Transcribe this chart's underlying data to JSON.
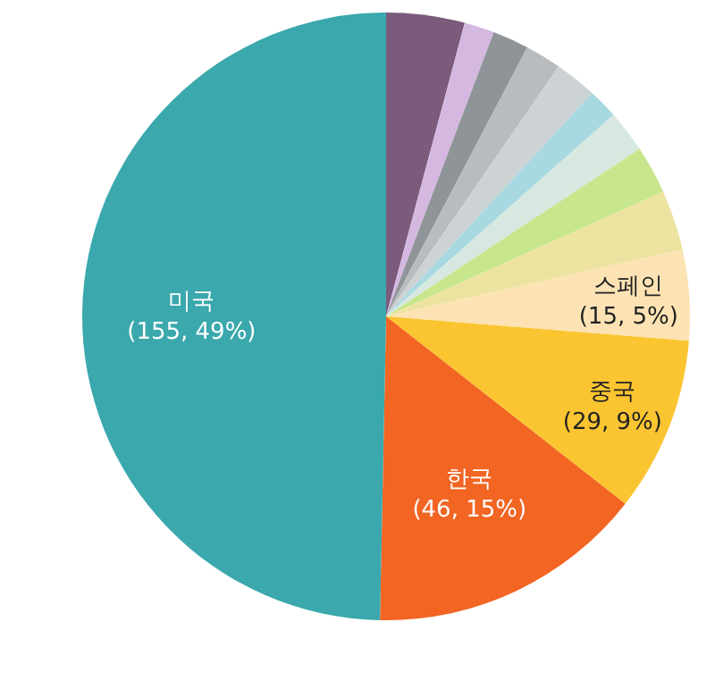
{
  "chart_data": {
    "type": "pie",
    "categories": [
      null,
      null,
      null,
      null,
      null,
      null,
      null,
      null,
      null,
      "스페인",
      "중국",
      "한국",
      "미국"
    ],
    "values": [
      13,
      5,
      6,
      6,
      7,
      5,
      7,
      8,
      10,
      15,
      29,
      46,
      155
    ],
    "value_labels": [
      null,
      null,
      null,
      null,
      null,
      null,
      null,
      null,
      null,
      "(15, 5%)",
      "(29, 9%)",
      "(46, 15%)",
      "(155, 49%)"
    ],
    "colors": [
      "#7b5a7c",
      "#d4b8e0",
      "#8f9498",
      "#b9bcbf",
      "#cdd2d4",
      "#a8d8e0",
      "#d6e8e0",
      "#c8e68c",
      "#ece3a0",
      "#fde3b4",
      "#fbc531",
      "#f26522",
      "#3aa8ad"
    ],
    "legend": false
  }
}
